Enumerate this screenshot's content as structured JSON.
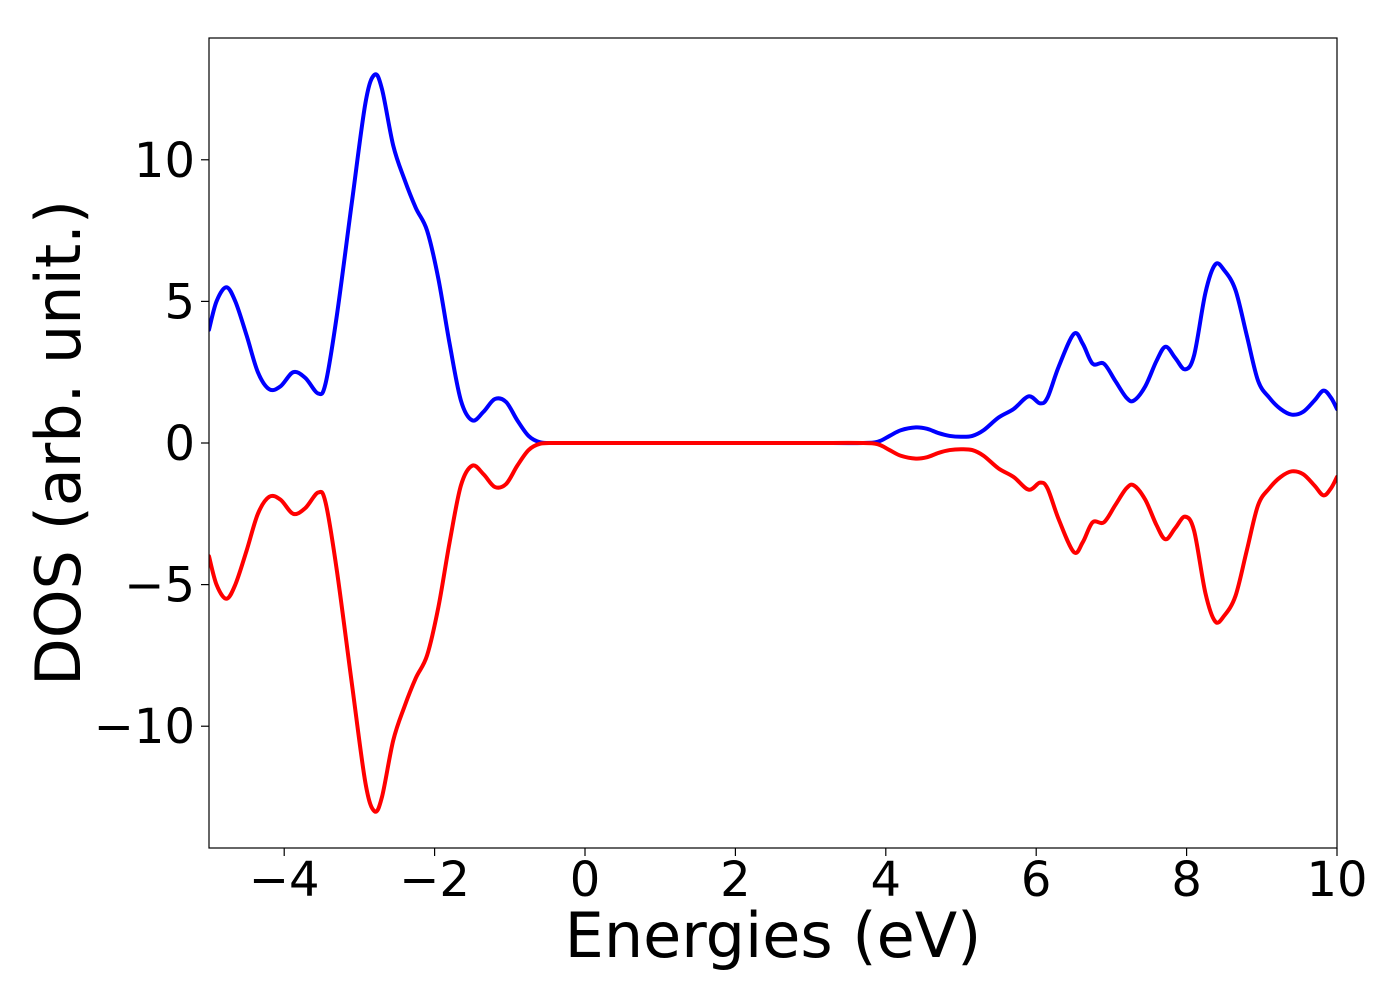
{
  "chart_data": {
    "type": "line",
    "title": "",
    "xlabel": "Energies (eV)",
    "ylabel": "DOS (arb. unit.)",
    "xlim": [
      -5,
      10
    ],
    "ylim": [
      -14.3,
      14.3
    ],
    "x_ticks": [
      -4,
      -2,
      0,
      2,
      4,
      6,
      8,
      10
    ],
    "x_tick_labels": [
      "−4",
      "−2",
      "0",
      "2",
      "4",
      "6",
      "8",
      "10"
    ],
    "y_ticks": [
      -10,
      -5,
      0,
      5,
      10
    ],
    "y_tick_labels": [
      "−10",
      "−5",
      "0",
      "5",
      "10"
    ],
    "grid": false,
    "legend": "none",
    "series": [
      {
        "color": "#0000ff",
        "points": [
          [
            -5.0,
            4.0
          ],
          [
            -4.9,
            5.0
          ],
          [
            -4.77,
            5.5
          ],
          [
            -4.65,
            5.0
          ],
          [
            -4.5,
            3.8
          ],
          [
            -4.35,
            2.5
          ],
          [
            -4.2,
            1.9
          ],
          [
            -4.05,
            2.0
          ],
          [
            -3.88,
            2.5
          ],
          [
            -3.72,
            2.3
          ],
          [
            -3.55,
            1.75
          ],
          [
            -3.45,
            2.1
          ],
          [
            -3.3,
            4.5
          ],
          [
            -3.1,
            8.5
          ],
          [
            -2.92,
            12.0
          ],
          [
            -2.8,
            13.0
          ],
          [
            -2.7,
            12.5
          ],
          [
            -2.55,
            10.5
          ],
          [
            -2.4,
            9.3
          ],
          [
            -2.25,
            8.3
          ],
          [
            -2.1,
            7.5
          ],
          [
            -1.95,
            5.8
          ],
          [
            -1.8,
            3.5
          ],
          [
            -1.65,
            1.5
          ],
          [
            -1.5,
            0.8
          ],
          [
            -1.35,
            1.1
          ],
          [
            -1.2,
            1.55
          ],
          [
            -1.05,
            1.45
          ],
          [
            -0.9,
            0.8
          ],
          [
            -0.75,
            0.25
          ],
          [
            -0.6,
            0.03
          ],
          [
            -0.4,
            0.0
          ],
          [
            0.0,
            0.0
          ],
          [
            1.0,
            0.0
          ],
          [
            2.0,
            0.0
          ],
          [
            3.0,
            0.0
          ],
          [
            3.7,
            0.0
          ],
          [
            3.9,
            0.05
          ],
          [
            4.05,
            0.25
          ],
          [
            4.2,
            0.45
          ],
          [
            4.4,
            0.55
          ],
          [
            4.55,
            0.5
          ],
          [
            4.7,
            0.35
          ],
          [
            4.85,
            0.25
          ],
          [
            5.0,
            0.22
          ],
          [
            5.15,
            0.25
          ],
          [
            5.3,
            0.45
          ],
          [
            5.5,
            0.9
          ],
          [
            5.7,
            1.2
          ],
          [
            5.9,
            1.65
          ],
          [
            6.05,
            1.4
          ],
          [
            6.15,
            1.6
          ],
          [
            6.3,
            2.7
          ],
          [
            6.5,
            3.85
          ],
          [
            6.62,
            3.5
          ],
          [
            6.75,
            2.8
          ],
          [
            6.9,
            2.8
          ],
          [
            7.05,
            2.2
          ],
          [
            7.2,
            1.6
          ],
          [
            7.3,
            1.5
          ],
          [
            7.45,
            2.0
          ],
          [
            7.6,
            2.9
          ],
          [
            7.72,
            3.4
          ],
          [
            7.85,
            3.0
          ],
          [
            7.98,
            2.6
          ],
          [
            8.1,
            3.1
          ],
          [
            8.25,
            5.3
          ],
          [
            8.38,
            6.3
          ],
          [
            8.5,
            6.1
          ],
          [
            8.65,
            5.4
          ],
          [
            8.8,
            3.8
          ],
          [
            8.95,
            2.2
          ],
          [
            9.1,
            1.6
          ],
          [
            9.25,
            1.2
          ],
          [
            9.4,
            1.0
          ],
          [
            9.55,
            1.1
          ],
          [
            9.7,
            1.5
          ],
          [
            9.82,
            1.85
          ],
          [
            9.92,
            1.6
          ],
          [
            10.0,
            1.2
          ]
        ]
      },
      {
        "color": "#ff0000",
        "points": [
          [
            -5.0,
            -4.0
          ],
          [
            -4.9,
            -5.0
          ],
          [
            -4.77,
            -5.5
          ],
          [
            -4.65,
            -5.0
          ],
          [
            -4.5,
            -3.8
          ],
          [
            -4.35,
            -2.5
          ],
          [
            -4.2,
            -1.9
          ],
          [
            -4.05,
            -2.0
          ],
          [
            -3.88,
            -2.5
          ],
          [
            -3.72,
            -2.3
          ],
          [
            -3.55,
            -1.75
          ],
          [
            -3.45,
            -2.1
          ],
          [
            -3.3,
            -4.5
          ],
          [
            -3.1,
            -8.5
          ],
          [
            -2.92,
            -12.0
          ],
          [
            -2.8,
            -13.0
          ],
          [
            -2.7,
            -12.5
          ],
          [
            -2.55,
            -10.5
          ],
          [
            -2.4,
            -9.3
          ],
          [
            -2.25,
            -8.3
          ],
          [
            -2.1,
            -7.5
          ],
          [
            -1.95,
            -5.8
          ],
          [
            -1.8,
            -3.5
          ],
          [
            -1.65,
            -1.5
          ],
          [
            -1.5,
            -0.8
          ],
          [
            -1.35,
            -1.1
          ],
          [
            -1.2,
            -1.55
          ],
          [
            -1.05,
            -1.45
          ],
          [
            -0.9,
            -0.8
          ],
          [
            -0.75,
            -0.25
          ],
          [
            -0.6,
            -0.03
          ],
          [
            -0.4,
            0.0
          ],
          [
            0.0,
            0.0
          ],
          [
            1.0,
            0.0
          ],
          [
            2.0,
            0.0
          ],
          [
            3.0,
            0.0
          ],
          [
            3.7,
            0.0
          ],
          [
            3.9,
            -0.05
          ],
          [
            4.05,
            -0.25
          ],
          [
            4.2,
            -0.45
          ],
          [
            4.4,
            -0.55
          ],
          [
            4.55,
            -0.5
          ],
          [
            4.7,
            -0.35
          ],
          [
            4.85,
            -0.25
          ],
          [
            5.0,
            -0.22
          ],
          [
            5.15,
            -0.25
          ],
          [
            5.3,
            -0.45
          ],
          [
            5.5,
            -0.9
          ],
          [
            5.7,
            -1.2
          ],
          [
            5.9,
            -1.65
          ],
          [
            6.05,
            -1.4
          ],
          [
            6.15,
            -1.6
          ],
          [
            6.3,
            -2.7
          ],
          [
            6.5,
            -3.85
          ],
          [
            6.62,
            -3.5
          ],
          [
            6.75,
            -2.8
          ],
          [
            6.9,
            -2.8
          ],
          [
            7.05,
            -2.2
          ],
          [
            7.2,
            -1.6
          ],
          [
            7.3,
            -1.5
          ],
          [
            7.45,
            -2.0
          ],
          [
            7.6,
            -2.9
          ],
          [
            7.72,
            -3.4
          ],
          [
            7.85,
            -3.0
          ],
          [
            7.98,
            -2.6
          ],
          [
            8.1,
            -3.1
          ],
          [
            8.25,
            -5.3
          ],
          [
            8.38,
            -6.3
          ],
          [
            8.5,
            -6.1
          ],
          [
            8.65,
            -5.4
          ],
          [
            8.8,
            -3.8
          ],
          [
            8.95,
            -2.2
          ],
          [
            9.1,
            -1.6
          ],
          [
            9.25,
            -1.2
          ],
          [
            9.4,
            -1.0
          ],
          [
            9.55,
            -1.1
          ],
          [
            9.7,
            -1.5
          ],
          [
            9.82,
            -1.85
          ],
          [
            9.92,
            -1.6
          ],
          [
            10.0,
            -1.2
          ]
        ]
      }
    ]
  }
}
